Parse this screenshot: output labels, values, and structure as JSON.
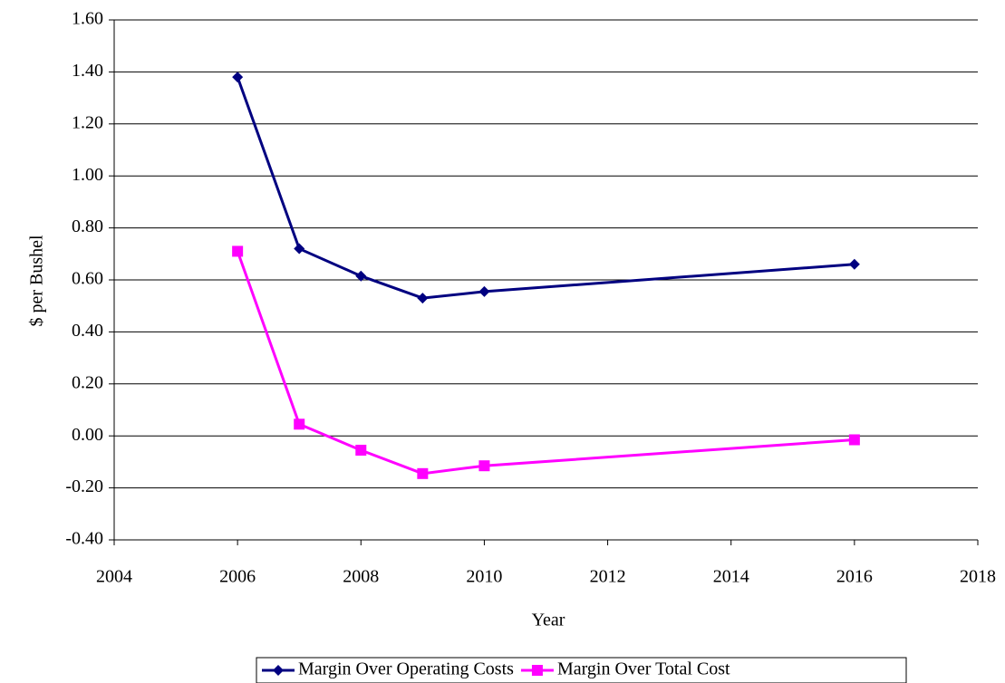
{
  "chart_data": {
    "type": "line",
    "x_label": "Year",
    "y_label": "$ per Bushel",
    "x": [
      2006,
      2007,
      2008,
      2009,
      2010,
      2016
    ],
    "series": [
      {
        "name": "Margin Over Operating Costs",
        "color": "#000080",
        "marker": "diamond",
        "values": [
          1.38,
          0.72,
          0.615,
          0.53,
          0.555,
          0.66
        ]
      },
      {
        "name": "Margin Over Total Cost",
        "color": "#ff00ff",
        "marker": "square",
        "values": [
          0.71,
          0.045,
          -0.055,
          -0.145,
          -0.115,
          -0.015
        ]
      }
    ],
    "xlim": [
      2004,
      2018
    ],
    "xticks": [
      2004,
      2006,
      2008,
      2010,
      2012,
      2014,
      2016,
      2018
    ],
    "ylim": [
      -0.4,
      1.6
    ],
    "yticks": [
      {
        "value": -0.4,
        "label": "-0.40"
      },
      {
        "value": -0.2,
        "label": "-0.20"
      },
      {
        "value": 0,
        "label": "0.00"
      },
      {
        "value": 0.2,
        "label": "0.20"
      },
      {
        "value": 0.4,
        "label": "0.40"
      },
      {
        "value": 0.6,
        "label": "0.60"
      },
      {
        "value": 0.8,
        "label": "0.80"
      },
      {
        "value": 1.0,
        "label": "1.00"
      },
      {
        "value": 1.2,
        "label": "1.20"
      },
      {
        "value": 1.4,
        "label": "1.40"
      },
      {
        "value": 1.6,
        "label": "1.60"
      }
    ],
    "grid": true,
    "legend": "bottom"
  }
}
